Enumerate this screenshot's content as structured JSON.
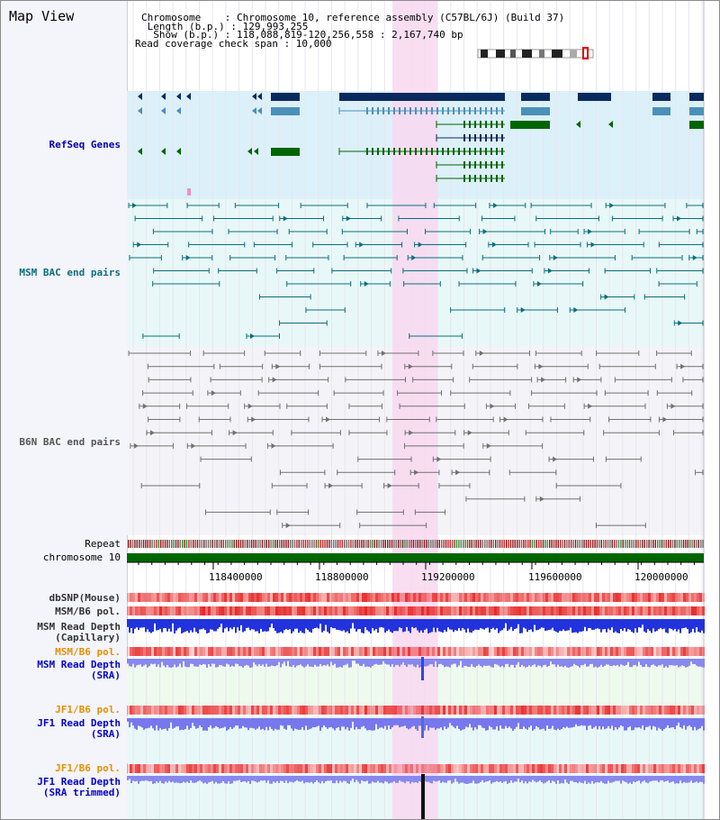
{
  "title": "Map View",
  "info": {
    "chromosome": "Chromosome    : Chromosome 10, reference assembly (C57BL/6J) (Build 37)",
    "length": " Length (b.p.) : 129,993,255",
    "show": "  Show (b.p.) : 118,088,819-120,256,558 : 2,167,740 bp",
    "coverage": "Read coverage check span : 10,000"
  },
  "tracks": {
    "refseq": "RefSeq Genes",
    "msm_bac": "MSM BAC end pairs",
    "b6n_bac": "B6N BAC end pairs",
    "repeat": "Repeat",
    "chromosome": "chromosome 10",
    "dbsnp": "dbSNP(Mouse)",
    "msm_b6_pol": "MSM/B6 pol.",
    "msm_depth_cap_1": "MSM Read Depth",
    "msm_depth_cap_2": "(Capillary)",
    "msm_b6_pol_2": "MSM/B6 pol.",
    "msm_depth_sra_1": "MSM Read Depth",
    "msm_depth_sra_2": "(SRA)",
    "jf1_b6_pol": "JF1/B6 pol.",
    "jf1_depth_sra_1": "JF1 Read Depth",
    "jf1_depth_sra_2": "(SRA)",
    "jf1_b6_pol_2": "JF1/B6 pol.",
    "jf1_depth_trim_1": "JF1 Read Depth",
    "jf1_depth_trim_2": "(SRA trimmed)"
  },
  "axis": {
    "ticks": [
      "118400000",
      "118800000",
      "119200000",
      "119600000",
      "120000000"
    ]
  },
  "colors": {
    "refseq_bg": "#dcf0fa",
    "msm_bg": "#e8f8f8",
    "b6n_bg": "#f4f4f8",
    "highlight": "#f8d8f0",
    "gene_dark": "#0a2a5e",
    "gene_mid": "#4a90b8",
    "gene_green": "#006600",
    "chrom_bar": "#006600"
  }
}
